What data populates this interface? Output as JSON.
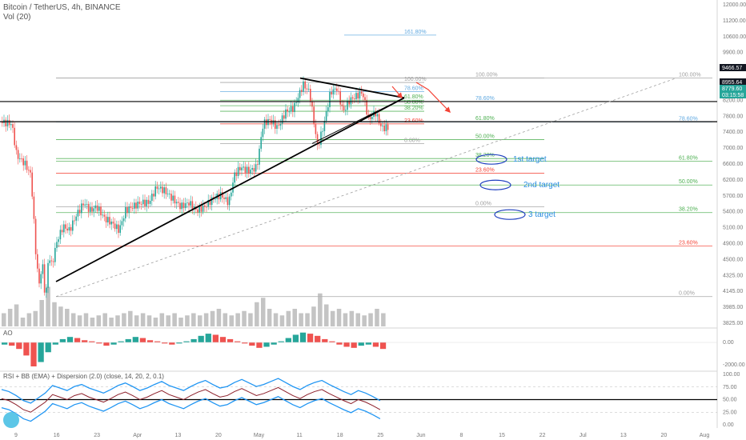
{
  "header": {
    "title": "Bitcoin / TetherUS, 4h, BINANCE",
    "volume_label": "Vol (20)"
  },
  "panes": {
    "ao_label": "AO",
    "rsi_label": "RSI + BB (EMA) + Dispersion (2.0) (close, 14, 20, 2, 0.1)"
  },
  "colors": {
    "up": "#26a69a",
    "down": "#ef5350",
    "fib_green": "#4caf50",
    "fib_red": "#f44336",
    "fib_gray": "#999999",
    "target_blue": "#2a8de0",
    "rsi_band": "#2196f3"
  },
  "chart_data": {
    "type": "candlestick",
    "symbol": "BTCUSDT",
    "interval": "4h",
    "price_axis_ticks": [
      "12000.00",
      "11200.00",
      "10600.00",
      "9900.00",
      "9300.00",
      "8700.00",
      "8200.00",
      "7800.00",
      "7400.00",
      "7000.00",
      "6600.00",
      "6200.00",
      "5700.00",
      "5400.00",
      "5100.00",
      "4900.00",
      "4500.00",
      "4325.00",
      "4145.00",
      "3985.00",
      "3825.00"
    ],
    "ylim": [
      3825,
      12000
    ],
    "time_axis_labels": [
      "9",
      "16",
      "23",
      "Apr",
      "13",
      "20",
      "May",
      "11",
      "18",
      "25",
      "Jun",
      "8",
      "15",
      "22",
      "Jul",
      "13",
      "20",
      "Aug"
    ],
    "price_tags": [
      {
        "value": "9466.57",
        "style": "dark"
      },
      {
        "value": "8955.64",
        "style": "dark"
      },
      {
        "value": "8779.60",
        "style": "green"
      },
      {
        "value": "03:15:58",
        "style": "green"
      }
    ],
    "price_path": [
      [
        0,
        8950
      ],
      [
        14,
        8900
      ],
      [
        20,
        8100
      ],
      [
        30,
        7900
      ],
      [
        38,
        7600
      ],
      [
        44,
        5600
      ],
      [
        48,
        4800
      ],
      [
        52,
        5400
      ],
      [
        56,
        4400
      ],
      [
        60,
        5600
      ],
      [
        64,
        5300
      ],
      [
        70,
        5900
      ],
      [
        78,
        6300
      ],
      [
        86,
        6200
      ],
      [
        95,
        6600
      ],
      [
        104,
        6900
      ],
      [
        112,
        6700
      ],
      [
        120,
        6800
      ],
      [
        130,
        6500
      ],
      [
        138,
        6400
      ],
      [
        148,
        6200
      ],
      [
        156,
        6700
      ],
      [
        165,
        6800
      ],
      [
        175,
        6900
      ],
      [
        185,
        6900
      ],
      [
        195,
        7300
      ],
      [
        205,
        7200
      ],
      [
        215,
        7000
      ],
      [
        225,
        6800
      ],
      [
        235,
        6900
      ],
      [
        245,
        6700
      ],
      [
        255,
        6800
      ],
      [
        265,
        7000
      ],
      [
        275,
        7100
      ],
      [
        285,
        6900
      ],
      [
        292,
        7600
      ],
      [
        300,
        7800
      ],
      [
        310,
        7700
      ],
      [
        320,
        7800
      ],
      [
        328,
        8900
      ],
      [
        336,
        9000
      ],
      [
        346,
        8800
      ],
      [
        356,
        9200
      ],
      [
        366,
        9300
      ],
      [
        378,
        9900
      ],
      [
        386,
        9700
      ],
      [
        396,
        8300
      ],
      [
        404,
        8900
      ],
      [
        412,
        9700
      ],
      [
        420,
        9800
      ],
      [
        428,
        9200
      ],
      [
        436,
        9500
      ],
      [
        444,
        9600
      ],
      [
        452,
        9700
      ],
      [
        460,
        9000
      ],
      [
        468,
        9200
      ],
      [
        476,
        8800
      ],
      [
        484,
        8800
      ]
    ],
    "volume_levels": [
      0.3,
      0.4,
      0.5,
      0.2,
      0.3,
      0.35,
      0.6,
      0.9,
      0.55,
      0.45,
      0.4,
      0.3,
      0.25,
      0.3,
      0.2,
      0.25,
      0.3,
      0.2,
      0.25,
      0.3,
      0.35,
      0.25,
      0.3,
      0.25,
      0.2,
      0.3,
      0.25,
      0.3,
      0.2,
      0.25,
      0.3,
      0.25,
      0.3,
      0.35,
      0.4,
      0.3,
      0.25,
      0.3,
      0.35,
      0.3,
      0.55,
      0.65,
      0.4,
      0.3,
      0.25,
      0.35,
      0.4,
      0.3,
      0.3,
      0.45,
      0.75,
      0.5,
      0.35,
      0.4,
      0.3,
      0.35,
      0.3,
      0.25,
      0.3,
      0.4,
      0.3
    ],
    "fib_sets": [
      {
        "name": "fib-large",
        "levels": [
          {
            "label": "100.00%",
            "value": 10060,
            "color": "gray"
          },
          {
            "label": "78.60%",
            "value": 8950,
            "color": "blue"
          },
          {
            "label": "61.80%",
            "value": 7950,
            "color": "green"
          },
          {
            "label": "50.00%",
            "value": 7350,
            "color": "green"
          },
          {
            "label": "38.20%",
            "value": 6650,
            "color": "green"
          },
          {
            "label": "23.60%",
            "value": 5800,
            "color": "red"
          },
          {
            "label": "0.00%",
            "value": 4520,
            "color": "gray"
          }
        ]
      },
      {
        "name": "fib-medium",
        "levels": [
          {
            "label": "100.00%",
            "value": 10060,
            "color": "gray"
          },
          {
            "label": "78.60%",
            "value": 9466,
            "color": "blue"
          },
          {
            "label": "61.80%",
            "value": 8955,
            "color": "green"
          },
          {
            "label": "50.00%",
            "value": 8500,
            "color": "green"
          },
          {
            "label": "38.20%",
            "value": 8020,
            "color": "green"
          },
          {
            "label": "23.60%",
            "value": 7650,
            "color": "red"
          },
          {
            "label": "0.00%",
            "value": 6800,
            "color": "gray"
          }
        ]
      },
      {
        "name": "fib-small",
        "levels": [
          {
            "label": "100.00%",
            "value": 9950,
            "color": "gray"
          },
          {
            "label": "78.60%",
            "value": 9720,
            "color": "blue"
          },
          {
            "label": "61.80%",
            "value": 9500,
            "color": "green"
          },
          {
            "label": "50.00%",
            "value": 9360,
            "color": "green"
          },
          {
            "label": "38.20%",
            "value": 9220,
            "color": "green"
          },
          {
            "label": "23.60%",
            "value": 8900,
            "color": "red"
          },
          {
            "label": "0.00%",
            "value": 8400,
            "color": "gray"
          }
        ]
      },
      {
        "name": "fib-extension",
        "levels": [
          {
            "label": "161.80%",
            "value": 11150,
            "color": "blue"
          }
        ]
      }
    ],
    "targets": [
      {
        "label": "1st target",
        "value": 8000
      },
      {
        "label": "2nd target",
        "value": 7350
      },
      {
        "label": "3 target",
        "value": 6600
      }
    ],
    "ao_ticks": [
      "0.00",
      "-2000.00"
    ],
    "rsi_ticks": [
      "100.00",
      "75.00",
      "50.00",
      "25.00",
      "0.00"
    ],
    "rsi_values": [
      52,
      48,
      40,
      30,
      25,
      35,
      45,
      60,
      55,
      50,
      58,
      62,
      55,
      50,
      45,
      52,
      60,
      65,
      58,
      50,
      55,
      62,
      68,
      60,
      55,
      50,
      58,
      65,
      70,
      62,
      55,
      58,
      66,
      72,
      65,
      58,
      62,
      68,
      74,
      66,
      58,
      52,
      60,
      66,
      70,
      62,
      55,
      48,
      42,
      50,
      45,
      38,
      30
    ],
    "ao_values": [
      -200,
      -300,
      -600,
      -1200,
      -2200,
      -1800,
      -900,
      -200,
      300,
      500,
      400,
      200,
      100,
      -100,
      -300,
      -200,
      100,
      300,
      500,
      400,
      200,
      100,
      -100,
      -200,
      -100,
      100,
      300,
      600,
      800,
      700,
      500,
      300,
      100,
      -100,
      -300,
      -500,
      -400,
      -200,
      100,
      400,
      700,
      900,
      800,
      600,
      300,
      100,
      -200,
      -400,
      -500,
      -300,
      -200,
      -400,
      -600
    ]
  }
}
